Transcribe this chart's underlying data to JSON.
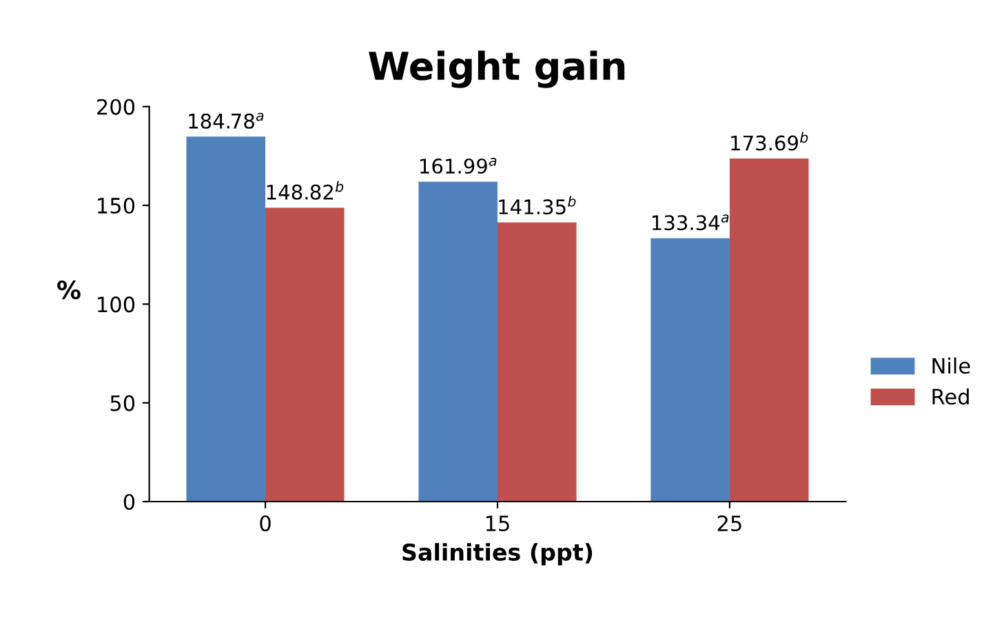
{
  "chart_data": {
    "type": "bar",
    "title": "Weight gain",
    "xlabel": "Salinities (ppt)",
    "ylabel": "%",
    "categories": [
      "0",
      "15",
      "25"
    ],
    "series": [
      {
        "name": "Nile",
        "color": "#4f81bd",
        "values": [
          184.78,
          161.99,
          133.34
        ],
        "value_labels": [
          "184.78$^{a}$",
          "161.99$^{a}$",
          "133.34$^{a}$"
        ]
      },
      {
        "name": "Red",
        "color": "#c0504d",
        "values": [
          148.82,
          141.35,
          173.69
        ],
        "value_labels": [
          "148.82$^{b}$",
          "141.35$^{b}$",
          "173.69$^{b}$"
        ]
      }
    ],
    "ylim": [
      0,
      200
    ],
    "yticks": [
      0,
      50,
      100,
      150,
      200
    ],
    "grid": false,
    "legend": "right"
  }
}
